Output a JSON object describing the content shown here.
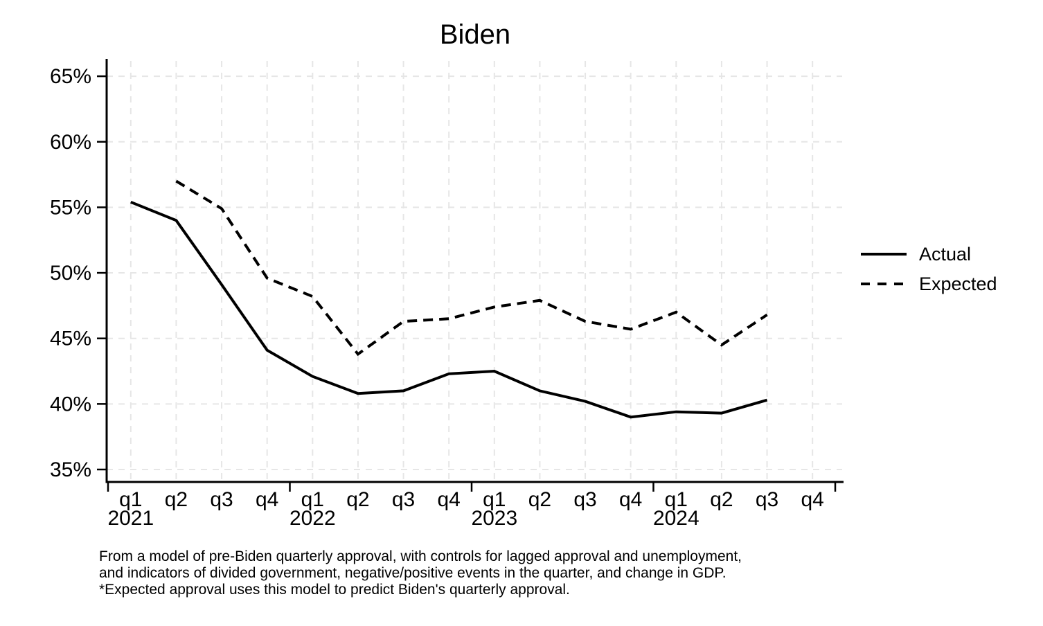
{
  "title": "Biden",
  "legend": {
    "items": [
      {
        "label": "Actual",
        "style": "solid"
      },
      {
        "label": "Expected",
        "style": "dashed"
      }
    ]
  },
  "footnote": {
    "line1": "From a model of pre-Biden quarterly approval, with controls for lagged approval and unemployment,",
    "line2": "and indicators of divided government, negative/positive events in the quarter, and change in GDP.",
    "line3": "*Expected approval uses this model to predict Biden's quarterly approval."
  },
  "chart_data": {
    "type": "line",
    "title": "Biden",
    "x_quarter_labels": [
      "q1",
      "q2",
      "q3",
      "q4",
      "q1",
      "q2",
      "q3",
      "q4",
      "q1",
      "q2",
      "q3",
      "q4",
      "q1",
      "q2",
      "q3",
      "q4"
    ],
    "x_year_labels": [
      "2021",
      "2022",
      "2023",
      "2024"
    ],
    "y_tick_labels": [
      "65%",
      "60%",
      "55%",
      "50%",
      "45%",
      "40%",
      "35%"
    ],
    "y_tick_values": [
      65,
      60,
      55,
      50,
      45,
      40,
      35
    ],
    "ylim": [
      35,
      65
    ],
    "grid": true,
    "legend_position": "right",
    "series": [
      {
        "name": "Actual",
        "style": "solid",
        "values": [
          55.4,
          54.0,
          49.1,
          44.1,
          42.1,
          40.8,
          41.0,
          42.3,
          42.5,
          41.0,
          40.2,
          39.0,
          39.4,
          39.3,
          40.3,
          null
        ]
      },
      {
        "name": "Expected",
        "style": "dashed",
        "values": [
          null,
          57.0,
          54.9,
          49.6,
          48.2,
          43.8,
          46.3,
          46.5,
          47.4,
          47.9,
          46.3,
          45.7,
          47.0,
          44.5,
          46.8,
          null
        ]
      }
    ],
    "colors": {
      "line": "#000000",
      "grid": "#e6e6e6",
      "background": "#ffffff",
      "text": "#000000"
    }
  }
}
